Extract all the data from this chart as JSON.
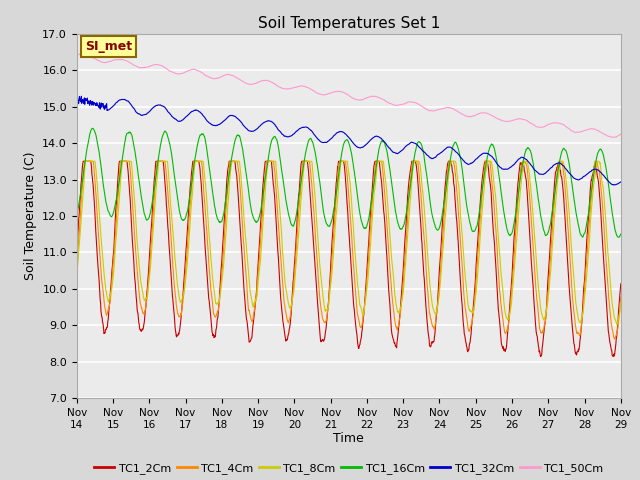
{
  "title": "Soil Temperatures Set 1",
  "xlabel": "Time",
  "ylabel": "Soil Temperature (C)",
  "ylim": [
    7.0,
    17.0
  ],
  "yticks": [
    7.0,
    8.0,
    9.0,
    10.0,
    11.0,
    12.0,
    13.0,
    14.0,
    15.0,
    16.0,
    17.0
  ],
  "bg_color": "#d8d8d8",
  "plot_bg_color": "#ebebeb",
  "grid_color": "#ffffff",
  "legend_labels": [
    "TC1_2Cm",
    "TC1_4Cm",
    "TC1_8Cm",
    "TC1_16Cm",
    "TC1_32Cm",
    "TC1_50Cm"
  ],
  "line_colors": [
    "#cc0000",
    "#ff8800",
    "#cccc00",
    "#00bb00",
    "#0000cc",
    "#ff99cc"
  ],
  "annotation_text": "SI_met",
  "annotation_bg": "#ffff99",
  "annotation_border": "#886600",
  "x_tick_labels": [
    "Nov\n14",
    "Nov\n15",
    "Nov\n16",
    "Nov\n17",
    "Nov\n18",
    "Nov\n19",
    "Nov\n20",
    "Nov\n21",
    "Nov\n22",
    "Nov\n23",
    "Nov\n24",
    "Nov\n25",
    "Nov\n26",
    "Nov\n27",
    "Nov\n28",
    "Nov\n29"
  ],
  "n_points": 1440,
  "days": 15
}
